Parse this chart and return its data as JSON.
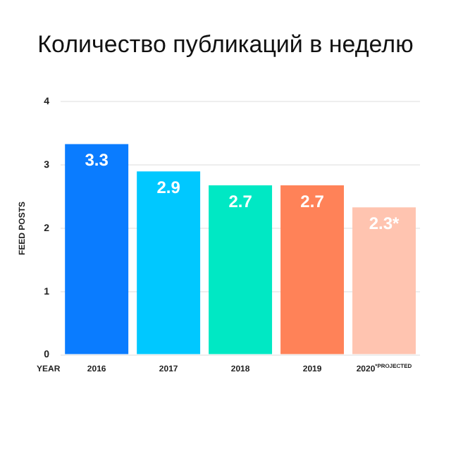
{
  "chart_data": {
    "type": "bar",
    "title": "Количество публикаций в неделю",
    "xlabel": "YEAR",
    "ylabel": "FEED POSTS",
    "categories": [
      "2016",
      "2017",
      "2018",
      "2019",
      "2020$^{*PROJECTED}$"
    ],
    "values": [
      3.33,
      2.9,
      2.68,
      2.68,
      2.33
    ],
    "colors": [
      "#0a7cff",
      "#00c8ff",
      "#00e8c4",
      "#ff8258",
      "#ffc4b0"
    ],
    "value_labels": [
      "3.3",
      "2.9",
      "2.7",
      "2.7",
      "2.3*"
    ],
    "ylim": [
      0,
      4
    ],
    "yticks": [
      0,
      1,
      2,
      3,
      4
    ],
    "grid": "y"
  }
}
